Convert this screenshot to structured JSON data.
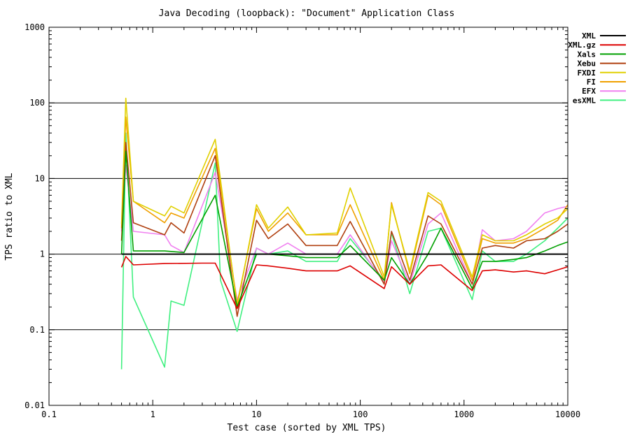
{
  "chart_data": {
    "type": "line",
    "title": "Java Decoding (loopback): \"Document\" Application Class",
    "xlabel": "Test case (sorted by XML TPS)",
    "ylabel": "TPS ratio to XML",
    "x_scale": "log",
    "y_scale": "log",
    "xlim": [
      0.1,
      10000
    ],
    "ylim": [
      0.01,
      1000
    ],
    "x_ticks": [
      {
        "value": 0.1,
        "label": "0.1"
      },
      {
        "value": 1,
        "label": "1"
      },
      {
        "value": 10,
        "label": "10"
      },
      {
        "value": 100,
        "label": "100"
      },
      {
        "value": 1000,
        "label": "1000"
      },
      {
        "value": 10000,
        "label": "10000"
      }
    ],
    "y_ticks": [
      {
        "value": 0.01,
        "label": "0.01"
      },
      {
        "value": 0.1,
        "label": "0.1"
      },
      {
        "value": 1,
        "label": "1"
      },
      {
        "value": 10,
        "label": "10"
      },
      {
        "value": 100,
        "label": "100"
      },
      {
        "value": 1000,
        "label": "1000"
      }
    ],
    "grid": "horizontal major lines",
    "legend_position": "top-right",
    "series": [
      {
        "name": "XML",
        "color": "#000000",
        "x": [
          0.5,
          10000
        ],
        "y": [
          1,
          1
        ]
      },
      {
        "name": "XML.gz",
        "color": "#dd0000",
        "x": [
          0.5,
          0.55,
          0.65,
          1.3,
          3,
          4,
          6.5,
          10,
          13,
          20,
          30,
          60,
          80,
          170,
          200,
          300,
          450,
          600,
          1200,
          1500,
          2000,
          3000,
          4000,
          6000,
          8000,
          10000
        ],
        "y": [
          0.67,
          0.93,
          0.72,
          0.75,
          0.76,
          0.76,
          0.19,
          0.72,
          0.7,
          0.65,
          0.6,
          0.6,
          0.7,
          0.35,
          0.68,
          0.4,
          0.7,
          0.72,
          0.33,
          0.6,
          0.62,
          0.58,
          0.6,
          0.55,
          0.62,
          0.68
        ]
      },
      {
        "name": "Xals",
        "color": "#00a000",
        "x": [
          0.5,
          0.55,
          0.65,
          1.3,
          2,
          4,
          6.5,
          10,
          13,
          20,
          30,
          60,
          80,
          170,
          200,
          300,
          450,
          600,
          1200,
          1500,
          2000,
          3000,
          4000,
          6000,
          8000,
          10000
        ],
        "y": [
          1.0,
          23,
          1.1,
          1.1,
          1.05,
          6,
          0.2,
          1.0,
          1.0,
          0.95,
          0.9,
          0.9,
          1.3,
          0.45,
          0.9,
          0.4,
          1.0,
          2.2,
          0.35,
          0.8,
          0.8,
          0.85,
          0.9,
          1.1,
          1.3,
          1.45
        ]
      },
      {
        "name": "Xebu",
        "color": "#b04010",
        "x": [
          0.5,
          0.55,
          0.65,
          1.3,
          1.5,
          2,
          4,
          6.5,
          10,
          13,
          20,
          30,
          60,
          80,
          170,
          200,
          300,
          450,
          600,
          1200,
          1500,
          2000,
          3000,
          4000,
          6000,
          8000,
          10000
        ],
        "y": [
          1.5,
          30,
          2.6,
          1.8,
          2.6,
          1.9,
          20,
          0.15,
          2.8,
          1.6,
          2.5,
          1.3,
          1.3,
          2.7,
          0.4,
          2.0,
          0.45,
          3.2,
          2.5,
          0.4,
          1.2,
          1.3,
          1.2,
          1.5,
          1.6,
          2.0,
          2.5
        ]
      },
      {
        "name": "FXDI",
        "color": "#e0d000",
        "x": [
          0.5,
          0.55,
          0.65,
          1.3,
          1.5,
          2,
          4,
          6.5,
          10,
          13,
          20,
          30,
          60,
          80,
          170,
          200,
          300,
          450,
          600,
          1200,
          1500,
          2000,
          3000,
          4000,
          6000,
          8000,
          10000
        ],
        "y": [
          2.5,
          115,
          5.0,
          3.2,
          4.3,
          3.5,
          33,
          0.2,
          4.5,
          2.2,
          4.2,
          1.8,
          1.9,
          7.5,
          0.5,
          4.5,
          0.6,
          6.5,
          5.0,
          0.5,
          1.8,
          1.5,
          1.5,
          1.8,
          2.5,
          3.0,
          4.0
        ]
      },
      {
        "name": "FI",
        "color": "#f0a000",
        "x": [
          0.5,
          0.55,
          0.65,
          1.3,
          1.5,
          2,
          4,
          6.5,
          10,
          13,
          20,
          30,
          60,
          80,
          170,
          200,
          300,
          450,
          600,
          1200,
          1500,
          2000,
          3000,
          4000,
          6000,
          8000,
          10000
        ],
        "y": [
          2.2,
          65,
          5.0,
          2.6,
          3.5,
          3.0,
          25,
          0.22,
          4.0,
          2.0,
          3.5,
          1.8,
          1.8,
          4.5,
          0.45,
          4.8,
          0.55,
          6.0,
          4.5,
          0.45,
          1.6,
          1.4,
          1.4,
          1.6,
          2.2,
          2.8,
          4.5
        ]
      },
      {
        "name": "EFX",
        "color": "#f080f0",
        "x": [
          0.5,
          0.55,
          0.65,
          1.3,
          1.5,
          2,
          4,
          6.5,
          10,
          13,
          20,
          30,
          60,
          80,
          170,
          200,
          300,
          450,
          600,
          1200,
          1500,
          2000,
          3000,
          4000,
          6000,
          8000,
          10000
        ],
        "y": [
          2.0,
          15,
          2.0,
          1.8,
          1.3,
          1.05,
          12,
          0.25,
          1.2,
          1.0,
          1.4,
          1.0,
          1.0,
          1.8,
          0.42,
          1.5,
          0.4,
          2.5,
          3.5,
          0.4,
          2.1,
          1.5,
          1.6,
          2.0,
          3.5,
          4.0,
          4.3
        ]
      },
      {
        "name": "esXML",
        "color": "#40f080",
        "x": [
          0.5,
          0.55,
          0.65,
          1.3,
          1.5,
          2,
          4,
          4.5,
          6.5,
          10,
          13,
          20,
          30,
          60,
          80,
          170,
          200,
          300,
          450,
          600,
          1200,
          1500,
          2000,
          3000,
          4000,
          6000,
          8000,
          10000
        ],
        "y": [
          0.03,
          40,
          0.27,
          0.032,
          0.24,
          0.21,
          16,
          0.45,
          0.095,
          1.2,
          1.0,
          1.1,
          0.8,
          0.8,
          1.6,
          0.45,
          1.9,
          0.3,
          2.0,
          2.2,
          0.25,
          1.1,
          0.8,
          0.8,
          1.0,
          1.5,
          2.2,
          3.0
        ]
      }
    ]
  }
}
